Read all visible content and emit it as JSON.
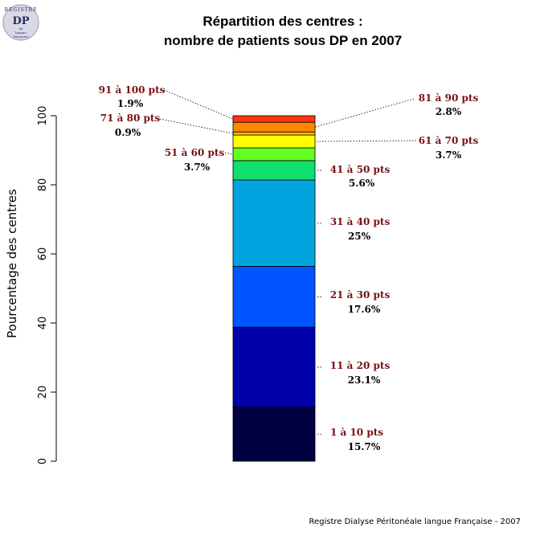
{
  "logo": {
    "arc_text": "REGISTRE",
    "main": "DP",
    "sub1": "de",
    "sub2": "langue",
    "sub3": "française"
  },
  "footer": "Registre Dialyse Péritonéale langue Française - 2007",
  "chart_data": {
    "type": "bar",
    "stacked": true,
    "title": "Répartition des centres :",
    "subtitle": "nombre de patients sous DP en 2007",
    "xlabel": "",
    "ylabel": "Pourcentage des centres",
    "ylim": [
      0,
      100
    ],
    "yticks": [
      "0",
      "20",
      "40",
      "60",
      "80",
      "100"
    ],
    "segments": [
      {
        "label": "1 à 10 pts",
        "pct_label": "15.7%",
        "value": 15.7,
        "color": "#000040",
        "side": "right"
      },
      {
        "label": "11 à 20 pts",
        "pct_label": "23.1%",
        "value": 23.1,
        "color": "#0000aa",
        "side": "right"
      },
      {
        "label": "21 à 30 pts",
        "pct_label": "17.6%",
        "value": 17.6,
        "color": "#0055ff",
        "side": "right"
      },
      {
        "label": "31 à 40 pts",
        "pct_label": "25%",
        "value": 25.0,
        "color": "#00a5e0",
        "side": "right"
      },
      {
        "label": "41 à 50 pts",
        "pct_label": "5.6%",
        "value": 5.6,
        "color": "#10e070",
        "side": "right"
      },
      {
        "label": "51 à 60 pts",
        "pct_label": "3.7%",
        "value": 3.7,
        "color": "#66ff22",
        "side": "left"
      },
      {
        "label": "61 à 70 pts",
        "pct_label": "3.7%",
        "value": 3.7,
        "color": "#ffff00",
        "side": "right"
      },
      {
        "label": "71 à 80 pts",
        "pct_label": "0.9%",
        "value": 0.9,
        "color": "#ffbb00",
        "side": "left"
      },
      {
        "label": "81 à 90 pts",
        "pct_label": "2.8%",
        "value": 2.8,
        "color": "#ff8800",
        "side": "right"
      },
      {
        "label": "91 à 100 pts",
        "pct_label": "1.9%",
        "value": 1.9,
        "color": "#ff3311",
        "side": "left"
      }
    ]
  }
}
